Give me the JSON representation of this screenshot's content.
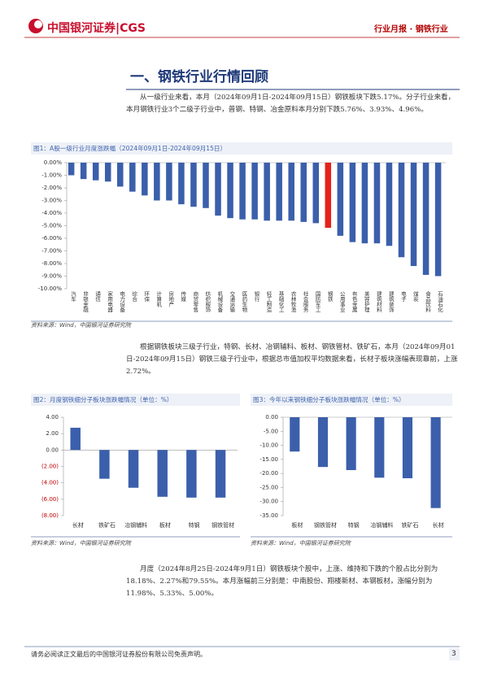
{
  "header": {
    "logo": "中国银河证券|CGS",
    "report": "行业月报 · 钢铁行业"
  },
  "section_title": "一、钢铁行业行情回顾",
  "paragraphs": [
    "从一级行业来看，本月（2024年09月1日-2024年09月15日）钢铁板块下跌5.17%。分子行业来看，本月钢铁行业3个二级子行业中，普钢、特钢、冶金原料本月分别下跌5.76%、3.93%、4.96%。",
    "根据钢铁板块三级子行业，特钢、长材、冶钢辅料、板材、钢铁管材、铁矿石，本月（2024年09月01日-2024年09月15日）钢铁三级子行业中，根据总市值加权平均数据来看，长材子板块涨幅表现靠前，上涨2.72%。",
    "月度（2024年8月25日-2024年9月1日）钢铁板块个股中，上涨、维持和下跌的个股占比分别为18.18%、2.27%和79.55%。本月涨幅前三分别是：中南股份、翔楼新材、本钢板材，涨幅分别为11.98%、5.33%、5.00%。"
  ],
  "chart_data": [
    {
      "type": "bar",
      "title": "图1：A股一级行业月度涨跌幅（2024年09月1日-2024年09月15日）",
      "categories": [
        "汽车",
        "非银金融",
        "通信",
        "家用电器",
        "电力设备",
        "综合",
        "环保",
        "计算机",
        "房地产",
        "传媒",
        "商贸零售",
        "纺织服饰",
        "机械设备",
        "交通运输",
        "医药生物",
        "银行",
        "轻工制造",
        "基础化工",
        "农林牧渔",
        "社会服务",
        "国防军工",
        "钢铁",
        "公用事业",
        "有色金属",
        "美容护理",
        "建筑材料",
        "建筑装饰",
        "电子",
        "煤炭",
        "食品饮料",
        "石油石化"
      ],
      "values": [
        -1.0,
        -1.3,
        -1.4,
        -1.5,
        -1.9,
        -2.3,
        -2.6,
        -3.0,
        -3.0,
        -3.3,
        -3.5,
        -3.6,
        -4.2,
        -4.4,
        -4.5,
        -4.5,
        -4.6,
        -4.6,
        -4.6,
        -4.7,
        -4.8,
        -5.17,
        -5.8,
        -6.3,
        -6.4,
        -6.4,
        -6.6,
        -7.5,
        -8.2,
        -8.9,
        -9.0
      ],
      "colors": [
        "#3b5fab",
        "#3b5fab",
        "#3b5fab",
        "#3b5fab",
        "#3b5fab",
        "#3b5fab",
        "#3b5fab",
        "#3b5fab",
        "#3b5fab",
        "#3b5fab",
        "#3b5fab",
        "#3b5fab",
        "#3b5fab",
        "#3b5fab",
        "#3b5fab",
        "#3b5fab",
        "#3b5fab",
        "#3b5fab",
        "#3b5fab",
        "#3b5fab",
        "#3b5fab",
        "#e3231c",
        "#3b5fab",
        "#3b5fab",
        "#3b5fab",
        "#3b5fab",
        "#3b5fab",
        "#3b5fab",
        "#3b5fab",
        "#3b5fab",
        "#3b5fab"
      ],
      "ylim": [
        -10,
        0
      ],
      "yticks": [
        {
          "value": 0,
          "label": "0.00%"
        },
        {
          "value": -1,
          "label": "-1.00%"
        },
        {
          "value": -2,
          "label": "-2.00%"
        },
        {
          "value": -3,
          "label": "-3.00%"
        },
        {
          "value": -4,
          "label": "-4.00%"
        },
        {
          "value": -5,
          "label": "-5.00%"
        },
        {
          "value": -6,
          "label": "-6.00%"
        },
        {
          "value": -7,
          "label": "-7.00%"
        },
        {
          "value": -8,
          "label": "-8.00%"
        },
        {
          "value": -9,
          "label": "-9.00%"
        },
        {
          "value": -10,
          "label": "-10.00%"
        }
      ],
      "source": "资料来源：Wind，中国银河证券研究院"
    },
    {
      "type": "bar",
      "title": "图2：月度钢铁细分子板块涨跌幅情况（单位：%）",
      "categories": [
        "长材",
        "铁矿石",
        "冶钢辅料",
        "板材",
        "特钢",
        "钢铁管材"
      ],
      "values": [
        2.72,
        -3.5,
        -4.6,
        -5.7,
        -5.8,
        -5.8
      ],
      "color": "#3b5fab",
      "negative_label_color": "#c00000",
      "ylim": [
        -8,
        4
      ],
      "yticks": [
        {
          "value": 4,
          "label": "4.00"
        },
        {
          "value": 2,
          "label": "2.00"
        },
        {
          "value": 0,
          "label": "0.00"
        },
        {
          "value": -2,
          "label": "(2.00)"
        },
        {
          "value": -4,
          "label": "(4.00)"
        },
        {
          "value": -6,
          "label": "(6.00)"
        },
        {
          "value": -8,
          "label": "(8.00)"
        }
      ],
      "source": "资料来源：Wind，中国银河证券研究院"
    },
    {
      "type": "bar",
      "title": "图3：今年以来钢铁细分子板块涨跌幅情况（单位：%）",
      "categories": [
        "板材",
        "钢铁管材",
        "特钢",
        "冶钢辅料",
        "铁矿石",
        "长材"
      ],
      "values": [
        -12.2,
        -17.7,
        -18.8,
        -21.5,
        -21.7,
        -32.3
      ],
      "color": "#3b5fab",
      "ylim": [
        -35,
        0
      ],
      "yticks": [
        {
          "value": 0,
          "label": "0.00"
        },
        {
          "value": -5,
          "label": "-5.00"
        },
        {
          "value": -10,
          "label": "-10.00"
        },
        {
          "value": -15,
          "label": "-15.00"
        },
        {
          "value": -20,
          "label": "-20.00"
        },
        {
          "value": -25,
          "label": "-25.00"
        },
        {
          "value": -30,
          "label": "-30.00"
        },
        {
          "value": -35,
          "label": "-35.00"
        }
      ],
      "source": "资料来源：Wind，中国银河证券研究院"
    }
  ],
  "footer": {
    "disclaimer": "请务必阅读正文最后的中国银河证券股份有限公司免责声明。",
    "page": "3"
  }
}
